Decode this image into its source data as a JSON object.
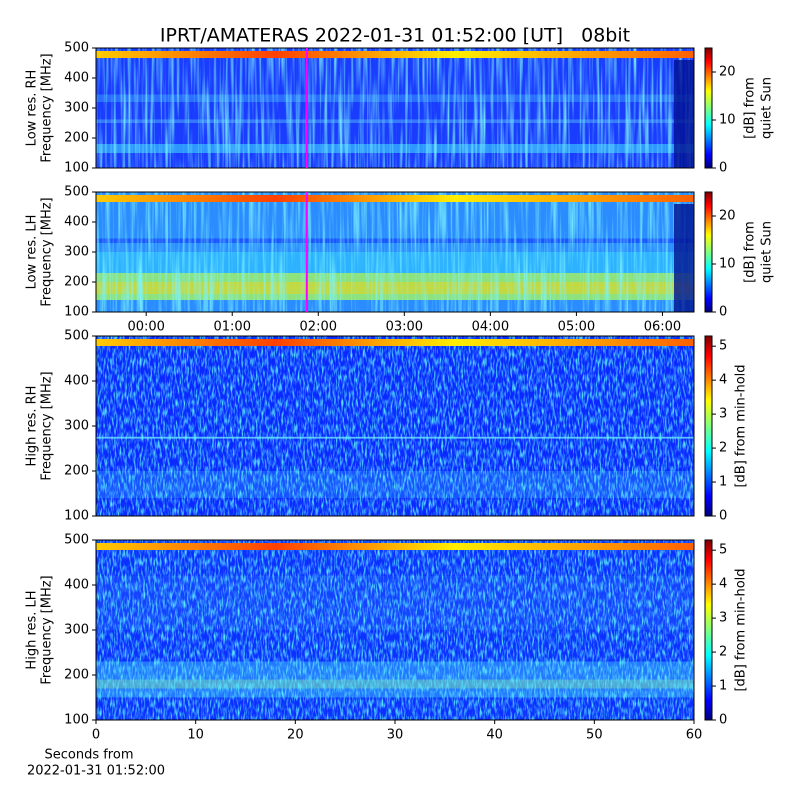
{
  "chart_data": [
    {
      "type": "heatmap",
      "title": "IPRT/AMATERAS 2022-01-31 01:52:00 [UT]   08bit",
      "ylabel": [
        "Low res. RH",
        "Frequency [MHz]"
      ],
      "ylim": [
        100,
        500
      ],
      "yticks": [
        100,
        200,
        300,
        400,
        500
      ],
      "xlim": [
        -35,
        382
      ],
      "marker_x": 112,
      "marker_color": "#ff00ff",
      "colorbar": {
        "label": [
          "[dB] from",
          "quiet Sun"
        ],
        "lim": [
          0,
          25
        ],
        "ticks": [
          0,
          10,
          20
        ]
      }
    },
    {
      "type": "heatmap",
      "ylabel": [
        "Low res. LH",
        "Frequency [MHz]"
      ],
      "ylim": [
        100,
        500
      ],
      "yticks": [
        100,
        200,
        300,
        400,
        500
      ],
      "xlim": [
        -35,
        382
      ],
      "xticks": [
        {
          "value": 0,
          "label": "00:00"
        },
        {
          "value": 60,
          "label": "01:00"
        },
        {
          "value": 120,
          "label": "02:00"
        },
        {
          "value": 180,
          "label": "03:00"
        },
        {
          "value": 240,
          "label": "04:00"
        },
        {
          "value": 300,
          "label": "05:00"
        },
        {
          "value": 360,
          "label": "06:00"
        }
      ],
      "marker_x": 112,
      "marker_color": "#ff00ff",
      "colorbar": {
        "label": [
          "[dB] from",
          "quiet Sun"
        ],
        "lim": [
          0,
          25
        ],
        "ticks": [
          0,
          10,
          20
        ]
      }
    },
    {
      "type": "heatmap",
      "ylabel": [
        "High res. RH",
        "Frequency [MHz]"
      ],
      "ylim": [
        100,
        500
      ],
      "yticks": [
        100,
        200,
        300,
        400,
        500
      ],
      "xlim": [
        0,
        60
      ],
      "colorbar": {
        "label": [
          "[dB] from min-hold"
        ],
        "lim": [
          0,
          5.3
        ],
        "ticks": [
          0,
          1,
          2,
          3,
          4,
          5
        ]
      }
    },
    {
      "type": "heatmap",
      "ylabel": [
        "High res. LH",
        "Frequency [MHz]"
      ],
      "ylim": [
        100,
        500
      ],
      "yticks": [
        100,
        200,
        300,
        400,
        500
      ],
      "xlim": [
        0,
        60
      ],
      "xticks": [
        0,
        10,
        20,
        30,
        40,
        50,
        60
      ],
      "xlabel": [
        "Seconds from",
        "2022-01-31 01:52:00"
      ],
      "colorbar": {
        "label": [
          "[dB] from min-hold"
        ],
        "lim": [
          0,
          5.3
        ],
        "ticks": [
          0,
          1,
          2,
          3,
          4,
          5
        ]
      }
    }
  ]
}
